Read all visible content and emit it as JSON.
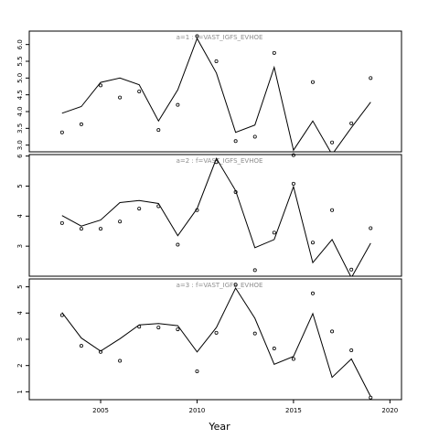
{
  "chart_data": {
    "type": "line",
    "xlabel": "Year",
    "xlim": [
      2001.3,
      2020.6
    ],
    "x_ticks": [
      2005,
      2010,
      2015,
      2020
    ],
    "panels": [
      {
        "label": "a=1  :  f=VAST_IGFS_EVHOE",
        "ylim": [
          2.8,
          6.4
        ],
        "y_ticks": [
          "3.0",
          "3.5",
          "4.0",
          "4.5",
          "5.0",
          "5.5",
          "6.0"
        ],
        "line": {
          "x": [
            2003,
            2004,
            2005,
            2006,
            2007,
            2008,
            2009,
            2010,
            2011,
            2012,
            2013,
            2014,
            2015,
            2016,
            2017,
            2018,
            2019
          ],
          "y": [
            3.95,
            4.15,
            4.87,
            5.0,
            4.8,
            3.72,
            4.65,
            6.18,
            5.15,
            3.38,
            3.6,
            5.32,
            2.85,
            3.72,
            2.72,
            3.52,
            4.28
          ]
        },
        "points": {
          "x": [
            2003,
            2004,
            2005,
            2006,
            2007,
            2008,
            2009,
            2010,
            2011,
            2012,
            2013,
            2014,
            2015,
            2016,
            2017,
            2018,
            2019
          ],
          "y": [
            3.38,
            3.62,
            4.78,
            4.42,
            4.6,
            3.45,
            4.2,
            6.25,
            5.5,
            3.12,
            3.25,
            5.75,
            2.7,
            4.88,
            3.08,
            3.65,
            5.0
          ]
        }
      },
      {
        "label": "a=2  :  f=VAST_IGFS_EVHOE",
        "ylim": [
          2.0,
          6.05
        ],
        "y_ticks": [
          "3",
          "4",
          "5",
          "6"
        ],
        "line": {
          "x": [
            2003,
            2004,
            2005,
            2006,
            2007,
            2008,
            2009,
            2010,
            2011,
            2012,
            2013,
            2014,
            2015,
            2016,
            2017,
            2018,
            2019
          ],
          "y": [
            4.02,
            3.67,
            3.87,
            4.45,
            4.52,
            4.42,
            3.35,
            4.25,
            5.92,
            4.85,
            2.95,
            3.22,
            4.98,
            2.45,
            3.22,
            1.95,
            3.1
          ]
        },
        "points": {
          "x": [
            2003,
            2004,
            2005,
            2006,
            2007,
            2008,
            2009,
            2010,
            2011,
            2012,
            2013,
            2014,
            2015,
            2016,
            2017,
            2018,
            2019
          ],
          "y": [
            3.77,
            3.58,
            3.58,
            3.82,
            4.25,
            4.33,
            3.05,
            4.2,
            5.8,
            4.8,
            2.2,
            3.45,
            5.08,
            3.12,
            4.2,
            2.22,
            3.6
          ]
        }
      },
      {
        "label": "a=3  :  f=VAST_IGFS_EVHOE",
        "ylim": [
          0.7,
          5.3
        ],
        "y_ticks": [
          "1",
          "2",
          "3",
          "4",
          "5"
        ],
        "line": {
          "x": [
            2003,
            2004,
            2005,
            2006,
            2007,
            2008,
            2009,
            2010,
            2011,
            2012,
            2013,
            2014,
            2015,
            2016,
            2017,
            2018,
            2019
          ],
          "y": [
            4.02,
            3.05,
            2.55,
            3.02,
            3.55,
            3.6,
            3.52,
            2.52,
            3.45,
            4.95,
            3.8,
            2.05,
            2.35,
            3.98,
            1.55,
            2.25,
            0.82
          ]
        },
        "points": {
          "x": [
            2003,
            2004,
            2005,
            2006,
            2007,
            2008,
            2009,
            2010,
            2011,
            2012,
            2013,
            2014,
            2015,
            2016,
            2017,
            2018,
            2019
          ],
          "y": [
            3.92,
            2.75,
            2.52,
            2.18,
            3.48,
            3.45,
            3.38,
            1.78,
            3.25,
            5.08,
            3.22,
            2.65,
            2.25,
            4.75,
            3.3,
            2.58,
            0.78
          ]
        }
      }
    ]
  }
}
